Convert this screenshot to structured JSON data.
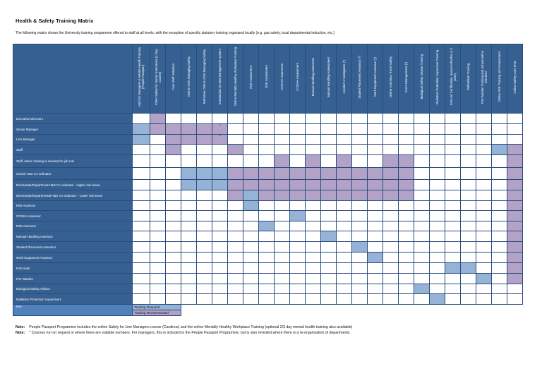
{
  "title": "Health & Safety Training Matrix",
  "intro": "The following matrix shows the University training programme offered to staff at all levels, with the exception of specific statutory training organised locally (e.g. gas safety, local departmental induction, etc.)",
  "colors": {
    "header": "#366092",
    "required": "#95b3d7",
    "recommended": "#b3a2c7",
    "key_label": "#4f81bd"
  },
  "columns": [
    "H&S for Managers & Mental Health Training (People Passport)",
    "IOSH Safety for Senior Executives (1 Day Course)",
    "Core Staff Induction",
    "Online IOSH Managing Safely",
    "Refresher Online IOSH Managing Safely",
    "Introduction to H&S Management System",
    "Online Mentally Healthy Workplace Training",
    "Risk Assessment",
    "DSE Assessment",
    "COSHH Awareness",
    "COSHH Assessment",
    "Manual Handling Awareness",
    "Manual Handling Assessment",
    "Accident Investigation (*)",
    "Student Placement Assessor (*)",
    "Work Equipment Assessor (*)",
    "Online Overseas Travel Safety",
    "Event Management (*)",
    "Biological Safety Advisor Training",
    "Radiation Protection Supervisor Training",
    "First Aid Certification, annual refresher & 3 yearly",
    "Defibrillator Training",
    "Fire Warden Training and annual online refresher",
    "Online DSE Training and Assessment",
    "Online Safety Core DVD"
  ],
  "rows": [
    {
      "label": "Executive Directors",
      "cells": [
        "",
        "P",
        "",
        "",
        "",
        "",
        "",
        "",
        "",
        "",
        "",
        "",
        "",
        "",
        "",
        "",
        "",
        "",
        "",
        "",
        "",
        "",
        "",
        "",
        ""
      ]
    },
    {
      "label": "Senior Manager",
      "cells": [
        "R",
        "P",
        "P",
        "P",
        "P",
        "P*",
        "",
        "",
        "",
        "",
        "",
        "",
        "",
        "",
        "",
        "",
        "",
        "",
        "",
        "",
        "",
        "",
        "",
        "",
        ""
      ]
    },
    {
      "label": "Line Manager",
      "cells": [
        "R",
        "",
        "P",
        "P",
        "P",
        "P*",
        "",
        "",
        "",
        "",
        "",
        "",
        "",
        "",
        "",
        "",
        "",
        "",
        "",
        "",
        "",
        "",
        "",
        "",
        ""
      ]
    },
    {
      "label": "Staff",
      "cells": [
        "",
        "",
        "P",
        "",
        "",
        "",
        "P",
        "",
        "",
        "",
        "",
        "",
        "",
        "",
        "",
        "",
        "",
        "",
        "",
        "",
        "",
        "",
        "",
        "R",
        "P"
      ]
    },
    {
      "label": "Staff, where training is relevant for job role",
      "cells": [
        "",
        "",
        "",
        "",
        "",
        "",
        "",
        "",
        "",
        "P",
        "",
        "P",
        "",
        "P",
        "",
        "",
        "P",
        "P",
        "",
        "",
        "",
        "",
        "",
        "",
        "P"
      ]
    },
    {
      "label": "School H&S Co-ordinator",
      "cells": [
        "",
        "",
        "",
        "R",
        "R",
        "R",
        "P",
        "P",
        "P",
        "P",
        "P",
        "P",
        "P",
        "P",
        "P",
        "P",
        "P",
        "P",
        "",
        "",
        "",
        "",
        "",
        "",
        "P"
      ]
    },
    {
      "label": "Directorate/Department H&S Co-ordinator - Higher risk areas",
      "cells": [
        "",
        "",
        "",
        "R",
        "R",
        "R",
        "P",
        "P",
        "P",
        "P",
        "P",
        "P",
        "P",
        "P",
        "P",
        "P",
        "P",
        "P",
        "",
        "",
        "",
        "",
        "",
        "",
        "P"
      ]
    },
    {
      "label": "Directorate/Departmental H&S Co-ordinator – Lower risk areas",
      "cells": [
        "",
        "",
        "",
        "",
        "",
        "",
        "P",
        "R",
        "P",
        "P",
        "P",
        "P",
        "P",
        "P",
        "P",
        "P",
        "P",
        "P",
        "",
        "",
        "",
        "",
        "",
        "",
        "P"
      ]
    },
    {
      "label": "Risk Assessor",
      "cells": [
        "",
        "",
        "",
        "",
        "",
        "",
        "",
        "R",
        "",
        "",
        "",
        "",
        "",
        "",
        "",
        "",
        "",
        "",
        "",
        "",
        "",
        "",
        "",
        "",
        "P"
      ]
    },
    {
      "label": "COSHH Assessor",
      "cells": [
        "",
        "",
        "",
        "",
        "",
        "",
        "",
        "",
        "",
        "",
        "R",
        "",
        "",
        "",
        "",
        "",
        "",
        "",
        "",
        "",
        "",
        "",
        "",
        "",
        "P"
      ]
    },
    {
      "label": "DSE Assessor",
      "cells": [
        "",
        "",
        "",
        "",
        "",
        "",
        "",
        "",
        "R",
        "",
        "",
        "",
        "",
        "",
        "",
        "",
        "",
        "",
        "",
        "",
        "",
        "",
        "",
        "",
        "P"
      ]
    },
    {
      "label": "Manual Handling Assessor",
      "cells": [
        "",
        "",
        "",
        "",
        "",
        "",
        "",
        "",
        "",
        "",
        "",
        "",
        "R",
        "",
        "",
        "",
        "",
        "",
        "",
        "",
        "",
        "",
        "",
        "",
        "P"
      ]
    },
    {
      "label": "Student Placement Assessor",
      "cells": [
        "",
        "",
        "",
        "",
        "",
        "",
        "",
        "",
        "",
        "",
        "",
        "",
        "",
        "",
        "R",
        "",
        "",
        "",
        "",
        "",
        "",
        "",
        "",
        "",
        "P"
      ]
    },
    {
      "label": "Work Equipment Assessor",
      "cells": [
        "",
        "",
        "",
        "",
        "",
        "",
        "",
        "",
        "",
        "",
        "",
        "",
        "",
        "",
        "",
        "R",
        "",
        "",
        "",
        "",
        "",
        "",
        "",
        "",
        "P"
      ]
    },
    {
      "label": "First Aider",
      "cells": [
        "",
        "",
        "",
        "",
        "",
        "",
        "",
        "",
        "",
        "",
        "",
        "",
        "",
        "",
        "",
        "",
        "",
        "",
        "",
        "",
        "R",
        "R",
        "",
        "",
        "P"
      ]
    },
    {
      "label": "Fire Warden",
      "cells": [
        "",
        "",
        "",
        "",
        "",
        "",
        "",
        "",
        "",
        "",
        "",
        "",
        "",
        "",
        "",
        "",
        "",
        "",
        "",
        "",
        "",
        "",
        "R",
        "",
        "P"
      ]
    },
    {
      "label": "Biological Safety Advisor",
      "cells": [
        "",
        "",
        "",
        "",
        "",
        "",
        "",
        "",
        "",
        "",
        "",
        "",
        "",
        "",
        "",
        "",
        "",
        "",
        "R",
        "",
        "",
        "",
        "",
        "",
        ""
      ]
    },
    {
      "label": "Radiation Protection Supervisors",
      "cells": [
        "",
        "",
        "",
        "",
        "",
        "",
        "",
        "",
        "",
        "",
        "",
        "",
        "",
        "",
        "",
        "",
        "",
        "",
        "",
        "R",
        "",
        "",
        "",
        "",
        ""
      ]
    }
  ],
  "key": {
    "label": "Key:",
    "required": "Training Required",
    "recommended": "Training Recommended"
  },
  "notes": [
    {
      "prefix": "Note:",
      "text": "People Passport Programme includes the online Safety for Line Managers course (Cardinus) and the online Mentally Healthy Workplace Training (optional 2/3 day mental health training also available)"
    },
    {
      "prefix": "Note:",
      "text": "* Courses run on request or where there are suitable numbers. For managers, this is included in the People Passport Programme, but is also revisited where there is a re-organisation of departments."
    }
  ]
}
